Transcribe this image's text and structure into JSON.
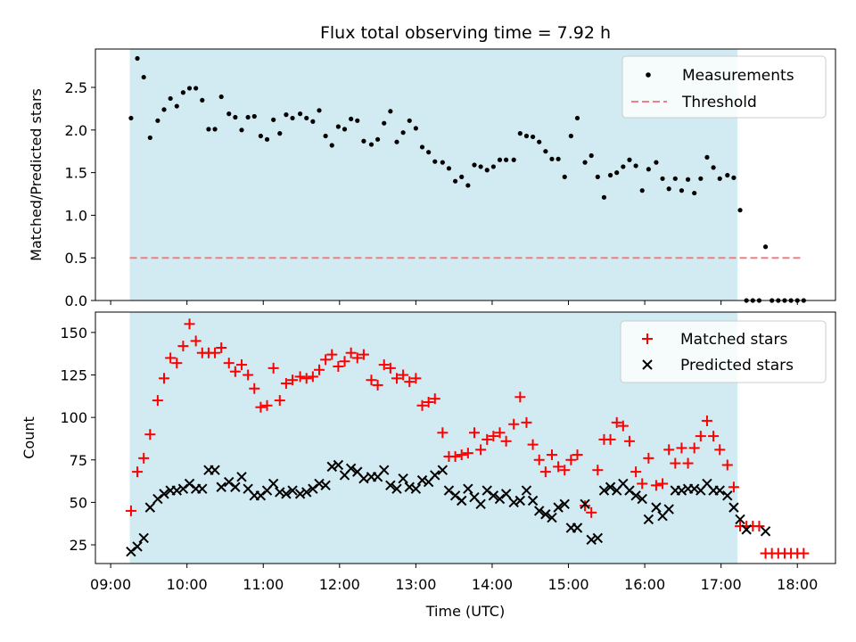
{
  "chart_data": [
    {
      "type": "scatter",
      "title": "Flux total observing time = 7.92 h",
      "xlabel": "",
      "ylabel": "Matched/Predicted stars",
      "xlim": [
        "08:48",
        "18:30"
      ],
      "ylim": [
        0,
        2.95
      ],
      "yticks": [
        0.0,
        0.5,
        1.0,
        1.5,
        2.0,
        2.5
      ],
      "ytick_labels": [
        "0.0",
        "0.5",
        "1.0",
        "1.5",
        "2.0",
        "2.5"
      ],
      "shaded_span": [
        "09:15",
        "17:13"
      ],
      "shade_color": "#add8e6",
      "threshold": 0.5,
      "threshold_span": [
        "09:15",
        "18:05"
      ],
      "threshold_color": "#f08080",
      "legend_position": "upper right",
      "legend": [
        "Measurements",
        "Threshold"
      ],
      "series": [
        {
          "name": "Measurements",
          "marker": "dot",
          "color": "#000000",
          "x": [
            "09:16",
            "09:21",
            "09:26",
            "09:31",
            "09:37",
            "09:42",
            "09:47",
            "09:52",
            "09:57",
            "10:02",
            "10:07",
            "10:12",
            "10:17",
            "10:22",
            "10:27",
            "10:33",
            "10:38",
            "10:43",
            "10:48",
            "10:53",
            "10:58",
            "11:03",
            "11:08",
            "11:13",
            "11:18",
            "11:23",
            "11:29",
            "11:34",
            "11:39",
            "11:44",
            "11:49",
            "11:54",
            "11:59",
            "12:04",
            "12:09",
            "12:14",
            "12:19",
            "12:25",
            "12:30",
            "12:35",
            "12:40",
            "12:45",
            "12:50",
            "12:55",
            "13:00",
            "13:05",
            "13:10",
            "13:15",
            "13:21",
            "13:26",
            "13:31",
            "13:36",
            "13:41",
            "13:46",
            "13:51",
            "13:56",
            "14:01",
            "14:06",
            "14:11",
            "14:17",
            "14:22",
            "14:27",
            "14:32",
            "14:37",
            "14:42",
            "14:47",
            "14:52",
            "14:57",
            "15:02",
            "15:07",
            "15:13",
            "15:18",
            "15:23",
            "15:28",
            "15:33",
            "15:38",
            "15:43",
            "15:48",
            "15:53",
            "15:58",
            "16:03",
            "16:09",
            "16:14",
            "16:19",
            "16:24",
            "16:29",
            "16:34",
            "16:39",
            "16:44",
            "16:49",
            "16:54",
            "16:59",
            "17:05",
            "17:10",
            "17:15",
            "17:20",
            "17:25",
            "17:30",
            "17:35",
            "17:40",
            "17:45",
            "17:50",
            "17:55",
            "18:00",
            "18:05"
          ],
          "y": [
            2.14,
            2.84,
            2.62,
            1.91,
            2.11,
            2.24,
            2.37,
            2.28,
            2.44,
            2.49,
            2.49,
            2.35,
            2.01,
            2.01,
            2.39,
            2.19,
            2.15,
            2.0,
            2.15,
            2.16,
            1.93,
            1.89,
            2.12,
            1.96,
            2.18,
            2.14,
            2.19,
            2.14,
            2.1,
            2.23,
            1.93,
            1.82,
            2.04,
            2.01,
            2.13,
            2.11,
            1.87,
            1.83,
            1.89,
            2.08,
            2.22,
            1.86,
            1.97,
            2.11,
            2.02,
            1.8,
            1.74,
            1.63,
            1.62,
            1.55,
            1.4,
            1.45,
            1.35,
            1.59,
            1.57,
            1.53,
            1.57,
            1.65,
            1.65,
            1.65,
            1.96,
            1.93,
            1.92,
            1.86,
            1.75,
            1.66,
            1.66,
            1.45,
            1.93,
            2.14,
            1.62,
            1.7,
            1.45,
            1.21,
            1.47,
            1.5,
            1.57,
            1.65,
            1.58,
            1.29,
            1.54,
            1.62,
            1.43,
            1.31,
            1.43,
            1.29,
            1.42,
            1.26,
            1.43,
            1.68,
            1.56,
            1.43,
            1.47,
            1.44,
            1.06,
            0,
            0,
            0,
            0.63,
            0,
            0,
            0,
            0,
            0,
            0
          ]
        }
      ]
    },
    {
      "type": "scatter",
      "title": "",
      "xlabel": "Time (UTC)",
      "ylabel": "Count",
      "xlim": [
        "08:48",
        "18:30"
      ],
      "ylim": [
        14,
        162
      ],
      "yticks": [
        25,
        50,
        75,
        100,
        125,
        150
      ],
      "ytick_labels": [
        "25",
        "50",
        "75",
        "100",
        "125",
        "150"
      ],
      "xticks": [
        "09:00",
        "10:00",
        "11:00",
        "12:00",
        "13:00",
        "14:00",
        "15:00",
        "16:00",
        "17:00",
        "18:00"
      ],
      "xtick_labels": [
        "09:00",
        "10:00",
        "11:00",
        "12:00",
        "13:00",
        "14:00",
        "15:00",
        "16:00",
        "17:00",
        "18:00"
      ],
      "shaded_span": [
        "09:15",
        "17:13"
      ],
      "shade_color": "#add8e6",
      "legend_position": "upper right",
      "legend": [
        "Matched stars",
        "Predicted stars"
      ],
      "series": [
        {
          "name": "Matched stars",
          "marker": "plus",
          "color": "#ff0000",
          "x": [
            "09:16",
            "09:21",
            "09:26",
            "09:31",
            "09:37",
            "09:42",
            "09:47",
            "09:52",
            "09:57",
            "10:02",
            "10:07",
            "10:12",
            "10:17",
            "10:22",
            "10:27",
            "10:33",
            "10:38",
            "10:43",
            "10:48",
            "10:53",
            "10:58",
            "11:03",
            "11:08",
            "11:13",
            "11:18",
            "11:23",
            "11:29",
            "11:34",
            "11:39",
            "11:44",
            "11:49",
            "11:54",
            "11:59",
            "12:04",
            "12:09",
            "12:14",
            "12:19",
            "12:25",
            "12:30",
            "12:35",
            "12:40",
            "12:45",
            "12:50",
            "12:55",
            "13:00",
            "13:05",
            "13:10",
            "13:15",
            "13:21",
            "13:26",
            "13:31",
            "13:36",
            "13:41",
            "13:46",
            "13:51",
            "13:56",
            "14:01",
            "14:06",
            "14:11",
            "14:17",
            "14:22",
            "14:27",
            "14:32",
            "14:37",
            "14:42",
            "14:47",
            "14:52",
            "14:57",
            "15:02",
            "15:07",
            "15:13",
            "15:18",
            "15:23",
            "15:28",
            "15:33",
            "15:38",
            "15:43",
            "15:48",
            "15:53",
            "15:58",
            "16:03",
            "16:09",
            "16:14",
            "16:19",
            "16:24",
            "16:29",
            "16:34",
            "16:39",
            "16:44",
            "16:49",
            "16:54",
            "16:59",
            "17:05",
            "17:10",
            "17:15",
            "17:20",
            "17:25",
            "17:30",
            "17:35",
            "17:40",
            "17:45",
            "17:50",
            "17:55",
            "18:00",
            "18:05"
          ],
          "y": [
            45,
            68,
            76,
            90,
            110,
            123,
            135,
            132,
            142,
            155,
            145,
            138,
            138,
            138,
            141,
            132,
            127,
            131,
            125,
            117,
            106,
            107,
            129,
            110,
            120,
            122,
            124,
            123,
            124,
            128,
            134,
            137,
            130,
            133,
            138,
            135,
            137,
            122,
            119,
            131,
            129,
            123,
            125,
            121,
            123,
            107,
            109,
            111,
            91,
            77,
            77,
            78,
            79,
            91,
            81,
            87,
            89,
            91,
            86,
            96,
            112,
            97,
            84,
            75,
            68,
            78,
            71,
            69,
            75,
            78,
            48,
            44,
            69,
            87,
            87,
            97,
            95,
            86,
            68,
            61,
            76,
            60,
            61,
            81,
            73,
            82,
            73,
            82,
            89,
            98,
            89,
            81,
            72,
            59,
            36,
            36,
            36,
            36,
            20,
            20,
            20,
            20,
            20,
            20,
            20
          ]
        },
        {
          "name": "Predicted stars",
          "marker": "x",
          "color": "#000000",
          "x": [
            "09:16",
            "09:21",
            "09:26",
            "09:31",
            "09:37",
            "09:42",
            "09:47",
            "09:52",
            "09:57",
            "10:02",
            "10:07",
            "10:12",
            "10:17",
            "10:22",
            "10:27",
            "10:33",
            "10:38",
            "10:43",
            "10:48",
            "10:53",
            "10:58",
            "11:03",
            "11:08",
            "11:13",
            "11:18",
            "11:23",
            "11:29",
            "11:34",
            "11:39",
            "11:44",
            "11:49",
            "11:54",
            "11:59",
            "12:04",
            "12:09",
            "12:14",
            "12:19",
            "12:25",
            "12:30",
            "12:35",
            "12:40",
            "12:45",
            "12:50",
            "12:55",
            "13:00",
            "13:05",
            "13:10",
            "13:15",
            "13:21",
            "13:26",
            "13:31",
            "13:36",
            "13:41",
            "13:46",
            "13:51",
            "13:56",
            "14:01",
            "14:06",
            "14:11",
            "14:17",
            "14:22",
            "14:27",
            "14:32",
            "14:37",
            "14:42",
            "14:47",
            "14:52",
            "14:57",
            "15:02",
            "15:07",
            "15:13",
            "15:18",
            "15:23",
            "15:28",
            "15:33",
            "15:38",
            "15:43",
            "15:48",
            "15:53",
            "15:58",
            "16:03",
            "16:09",
            "16:14",
            "16:19",
            "16:24",
            "16:29",
            "16:34",
            "16:39",
            "16:44",
            "16:49",
            "16:54",
            "16:59",
            "17:05",
            "17:10",
            "17:15",
            "17:20"
          ],
          "y": [
            21,
            24,
            29,
            47,
            52,
            55,
            57,
            57,
            58,
            61,
            58,
            58,
            69,
            69,
            59,
            62,
            59,
            65,
            58,
            54,
            54,
            57,
            61,
            56,
            55,
            57,
            55,
            56,
            58,
            61,
            60,
            71,
            72,
            66,
            70,
            68,
            64,
            65,
            65,
            69,
            60,
            58,
            64,
            59,
            58,
            63,
            62,
            66,
            69,
            57,
            54,
            51,
            58,
            53,
            49,
            57,
            54,
            52,
            55,
            50,
            51,
            57,
            51,
            45,
            43,
            41,
            47,
            49,
            35,
            35,
            49,
            28,
            29,
            57,
            59,
            57,
            61,
            57,
            54,
            52,
            40,
            47,
            42,
            46,
            57,
            57,
            58,
            58,
            57,
            61,
            57,
            57,
            54,
            47,
            40,
            34
          ]
        },
        {
          "name": "",
          "marker": "x",
          "color": "#000000",
          "x": [
            "17:35"
          ],
          "y": [
            33
          ]
        }
      ]
    }
  ]
}
